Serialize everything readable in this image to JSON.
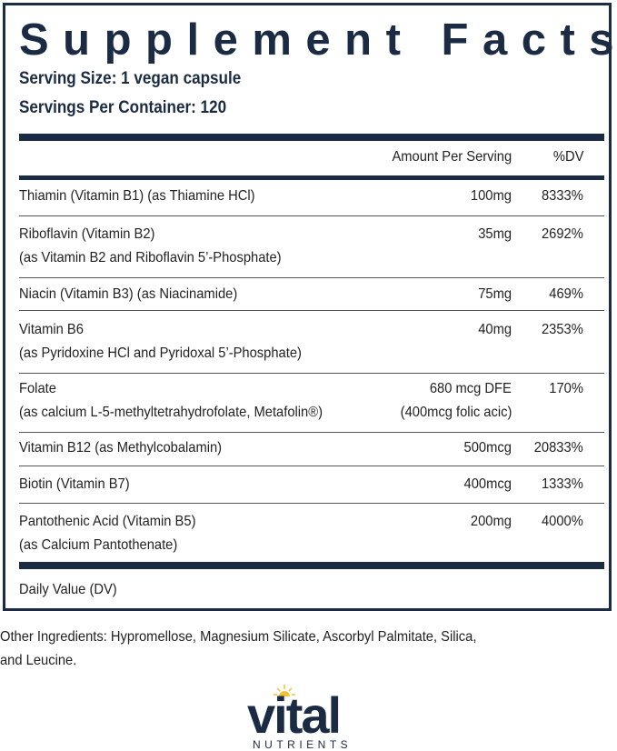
{
  "title": "Supplement Facts",
  "serving_size": "Serving Size: 1 vegan capsule",
  "servings_per_container": "Servings Per Container: 120",
  "header": {
    "amount": "Amount Per Serving",
    "dv": "%DV"
  },
  "rows": [
    {
      "name": "Thiamin (Vitamin B1) (as Thiamine HCl)",
      "amount": "100mg",
      "dv": "8333%"
    },
    {
      "name": "Riboflavin (Vitamin B2)",
      "sub": "(as Vitamin B2 and Riboflavin 5’-Phosphate)",
      "amount": "35mg",
      "dv": "2692%"
    },
    {
      "name": "Niacin (Vitamin B3) (as Niacinamide)",
      "amount": "75mg",
      "dv": "469%"
    },
    {
      "name": "Vitamin B6",
      "sub": "(as Pyridoxine HCl and Pyridoxal 5’-Phosphate)",
      "amount": "40mg",
      "dv": "2353%"
    },
    {
      "name": "Folate",
      "sub": "(as calcium L-5-methyltetrahydrofolate, Metafolin®)",
      "amount": "680 mcg  DFE",
      "amount2": "(400mcg folic acic)",
      "dv": "170%"
    },
    {
      "name": "Vitamin B12 (as Methylcobalamin)",
      "amount": "500mcg",
      "dv": "20833%"
    },
    {
      "name": "Biotin (Vitamin B7)",
      "amount": "400mcg",
      "dv": "1333%"
    },
    {
      "name": "Pantothenic Acid (Vitamin B5)",
      "sub": "(as Calcium Pantothenate)",
      "amount": "200mg",
      "dv": "4000%"
    }
  ],
  "footnote": "Daily Value (DV)",
  "other_ingredients": [
    "Other Ingredients: Hypromellose, Magnesium Silicate, Ascorbyl Palmitate, Silica,",
    "and Leucine."
  ],
  "logo": {
    "word": "vital",
    "sub": "NUTRIENTS"
  },
  "colors": {
    "navy": "#1c2b44",
    "sun": "#f2c230"
  }
}
